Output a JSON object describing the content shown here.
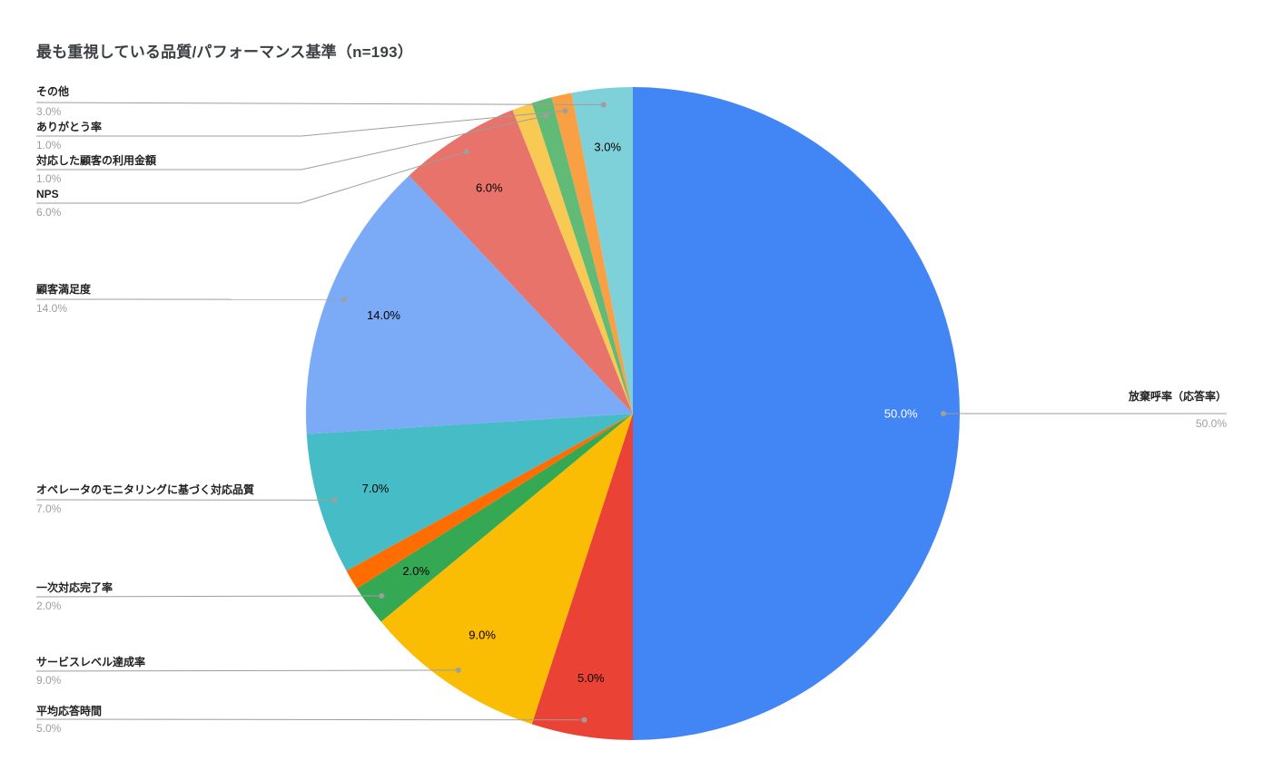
{
  "title": "最も重視している品質/パフォーマンス基準（n=193）",
  "colors": {
    "title_text": "#3c4043",
    "label_name_text": "#212121",
    "label_pct_text": "#9e9e9e",
    "leader_line": "#9e9e9e",
    "value_label_default": "#000000",
    "background": "#ffffff"
  },
  "chart_data": {
    "type": "pie",
    "title": "最も重視している品質/パフォーマンス基準（n=193）",
    "n": 193,
    "start": "12-o-clock",
    "direction": "clockwise",
    "legend_position": "outside-labels-with-leader-lines",
    "slices": [
      {
        "label": "放棄呼率（応答率）",
        "value": 50.0,
        "pct_label": "50.0%",
        "color": "#4285F4",
        "value_label_color": "#ffffff",
        "outside_label": true
      },
      {
        "label": "平均応答時間",
        "value": 5.0,
        "pct_label": "5.0%",
        "color": "#EA4335",
        "outside_label": true
      },
      {
        "label": "サービスレベル達成率",
        "value": 9.0,
        "pct_label": "9.0%",
        "color": "#FBBC04",
        "outside_label": true
      },
      {
        "label": "一次対応完了率",
        "value": 2.0,
        "pct_label": "2.0%",
        "color": "#34A853",
        "outside_label": true
      },
      {
        "label": "",
        "value": 1.0,
        "pct_label": "",
        "color": "#FF6D01",
        "outside_label": false
      },
      {
        "label": "オペレータのモニタリングに基づく対応品質",
        "value": 7.0,
        "pct_label": "7.0%",
        "color": "#46BDC6",
        "outside_label": true
      },
      {
        "label": "顧客満足度",
        "value": 14.0,
        "pct_label": "14.0%",
        "color": "#7BAAF7",
        "outside_label": true
      },
      {
        "label": "NPS",
        "value": 6.0,
        "pct_label": "6.0%",
        "color": "#E8736A",
        "outside_label": true
      },
      {
        "label": "",
        "value": 1.0,
        "pct_label": "",
        "color": "#F8CA53",
        "outside_label": false
      },
      {
        "label": "対応した顧客の利用金額",
        "value": 1.0,
        "pct_label": "1.0%",
        "color": "#61BA75",
        "outside_label": true
      },
      {
        "label": "ありがとう率",
        "value": 1.0,
        "pct_label": "1.0%",
        "color": "#F9A045",
        "outside_label": true
      },
      {
        "label": "その他",
        "value": 3.0,
        "pct_label": "3.0%",
        "color": "#7ED1D8",
        "outside_label": true
      }
    ]
  }
}
